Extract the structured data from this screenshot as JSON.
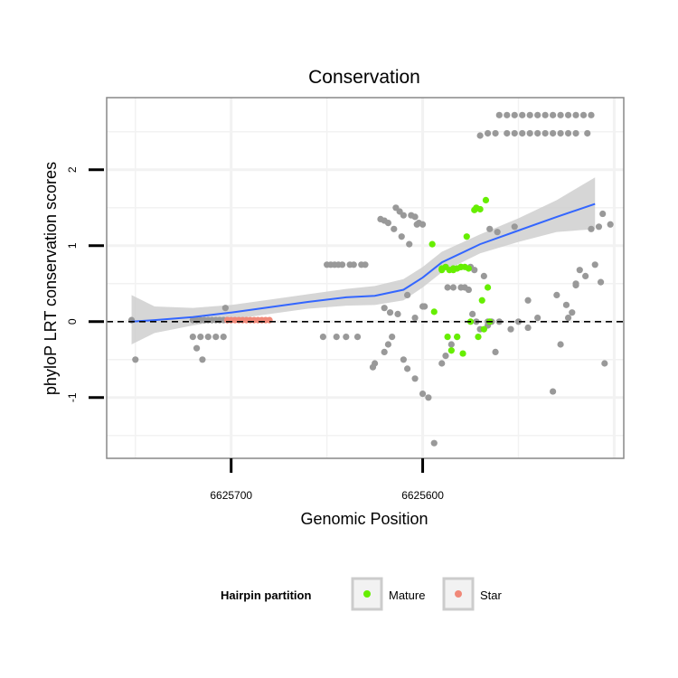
{
  "chart_data": {
    "type": "scatter",
    "title": "Conservation",
    "xlabel": "Genomic Position",
    "ylabel": "phyloP LRT conservation scores",
    "x_reversed": true,
    "xlim": [
      6625765,
      6625495
    ],
    "ylim": [
      -1.8,
      2.95
    ],
    "x_ticks": [
      6625700,
      6625600
    ],
    "x_tick_labels": [
      "6625700",
      "6625600"
    ],
    "y_ticks": [
      -1,
      0,
      1,
      2
    ],
    "y_tick_labels": [
      "-1",
      "0",
      "1",
      "2"
    ],
    "reference_line": {
      "y": 0,
      "style": "dashed"
    },
    "legend": {
      "title": "Hairpin partition",
      "position": "bottom",
      "entries": [
        {
          "label": "Mature",
          "color": "#66ee00"
        },
        {
          "label": "Star",
          "color": "#f08878"
        }
      ]
    },
    "colors": {
      "other": "#999999",
      "mature": "#66ee00",
      "star": "#f08878",
      "smooth_line": "#3366ff",
      "ci_band": "#cccccc",
      "grid": "#f2f2f2",
      "panel_border": "#888888"
    },
    "smooth": {
      "x": [
        6625752,
        6625740,
        6625720,
        6625700,
        6625680,
        6625660,
        6625640,
        6625625,
        6625610,
        6625600,
        6625590,
        6625570,
        6625550,
        6625530,
        6625510
      ],
      "y": [
        0.0,
        0.02,
        0.06,
        0.12,
        0.19,
        0.26,
        0.32,
        0.34,
        0.42,
        0.58,
        0.78,
        1.02,
        1.2,
        1.38,
        1.55
      ],
      "lower": [
        -0.3,
        -0.15,
        -0.05,
        0.03,
        0.1,
        0.17,
        0.21,
        0.22,
        0.28,
        0.45,
        0.65,
        0.9,
        1.05,
        1.18,
        1.22
      ],
      "upper": [
        0.35,
        0.2,
        0.18,
        0.22,
        0.29,
        0.36,
        0.43,
        0.47,
        0.56,
        0.72,
        0.92,
        1.15,
        1.36,
        1.6,
        1.9
      ]
    },
    "series": [
      {
        "name": "other",
        "x": [
          6625752,
          6625750,
          6625720,
          6625718,
          6625716,
          6625714,
          6625712,
          6625710,
          6625708,
          6625706,
          6625704,
          6625702,
          6625720,
          6625716,
          6625712,
          6625708,
          6625704,
          6625718,
          6625715,
          6625703,
          6625650,
          6625648,
          6625646,
          6625644,
          6625642,
          6625638,
          6625636,
          6625632,
          6625630,
          6625652,
          6625645,
          6625640,
          6625634,
          6625622,
          6625620,
          6625618,
          6625625,
          6625626,
          6625614,
          6625612,
          6625610,
          6625606,
          6625604,
          6625602,
          6625615,
          6625611,
          6625607,
          6625603,
          6625600,
          6625599,
          6625620,
          6625617,
          6625613,
          6625608,
          6625604,
          6625600,
          6625620,
          6625618,
          6625616,
          6625610,
          6625608,
          6625604,
          6625600,
          6625597,
          6625594,
          6625590,
          6625588,
          6625585,
          6625582,
          6625587,
          6625584,
          6625580,
          6625578,
          6625576,
          6625574,
          6625572,
          6625570,
          6625566,
          6625562,
          6625575,
          6625573,
          6625568,
          6625560,
          6625556,
          6625552,
          6625548,
          6625544,
          6625540,
          6625536,
          6625532,
          6625528,
          6625524,
          6625520,
          6625516,
          6625512,
          6625570,
          6625566,
          6625562,
          6625556,
          6625552,
          6625548,
          6625544,
          6625540,
          6625536,
          6625532,
          6625528,
          6625524,
          6625520,
          6625514,
          6625565,
          6625561,
          6625552,
          6625545,
          6625540,
          6625520,
          6625506,
          6625510,
          6625515,
          6625520,
          6625505,
          6625508,
          6625512,
          6625524,
          6625528,
          6625532,
          6625545,
          6625550,
          6625554,
          6625560,
          6625564,
          6625566,
          6625518,
          6625522,
          6625525,
          6625530,
          6625502,
          6625507
        ],
        "y": [
          0.02,
          -0.5,
          0.02,
          0.02,
          0.02,
          0.02,
          0.02,
          0.02,
          0.02,
          0.02,
          0.02,
          0.02,
          -0.2,
          -0.2,
          -0.2,
          -0.2,
          -0.2,
          -0.35,
          -0.5,
          0.18,
          0.75,
          0.75,
          0.75,
          0.75,
          0.75,
          0.75,
          0.75,
          0.75,
          0.75,
          -0.2,
          -0.2,
          -0.2,
          -0.2,
          1.35,
          1.33,
          1.3,
          -0.55,
          -0.6,
          1.5,
          1.45,
          1.4,
          1.4,
          1.38,
          1.3,
          1.22,
          1.12,
          1.02,
          1.28,
          1.28,
          0.2,
          0.18,
          0.12,
          0.1,
          0.35,
          0.05,
          0.2,
          -0.4,
          -0.3,
          -0.2,
          -0.5,
          -0.62,
          -0.75,
          -0.95,
          -1.0,
          -1.6,
          -0.55,
          -0.45,
          -0.3,
          -0.2,
          0.45,
          0.45,
          0.45,
          0.45,
          0.42,
          0.1,
          0.0,
          -0.1,
          -0.05,
          -0.4,
          0.72,
          0.68,
          0.6,
          2.72,
          2.72,
          2.72,
          2.72,
          2.72,
          2.72,
          2.72,
          2.72,
          2.72,
          2.72,
          2.72,
          2.72,
          2.72,
          2.45,
          2.48,
          2.48,
          2.48,
          2.48,
          2.48,
          2.48,
          2.48,
          2.48,
          2.48,
          2.48,
          2.48,
          2.48,
          2.48,
          1.22,
          1.18,
          1.25,
          0.28,
          0.05,
          0.5,
          1.42,
          0.75,
          0.6,
          0.48,
          -0.55,
          1.25,
          1.22,
          0.05,
          -0.3,
          -0.92,
          -0.08,
          0.0,
          -0.1,
          0.0,
          0.0,
          0.0,
          0.68,
          0.12,
          0.22,
          0.35,
          1.28,
          0.52
        ],
        "color": "#999999"
      },
      {
        "name": "Mature",
        "x": [
          6625595,
          6625594,
          6625590,
          6625588,
          6625586,
          6625584,
          6625582,
          6625580,
          6625578,
          6625576,
          6625587,
          6625585,
          6625582,
          6625579,
          6625572,
          6625570,
          6625567,
          6625577,
          6625575,
          6625566,
          6625569,
          6625571,
          6625568,
          6625565,
          6625573,
          6625590,
          6625584,
          6625580
        ],
        "y": [
          1.02,
          0.13,
          0.7,
          0.72,
          0.68,
          0.68,
          0.7,
          0.72,
          0.72,
          0.7,
          -0.2,
          -0.38,
          -0.2,
          -0.42,
          1.5,
          1.48,
          1.6,
          1.12,
          0.0,
          0.45,
          0.28,
          -0.2,
          -0.1,
          0.0,
          1.47,
          0.68,
          0.7,
          0.72
        ],
        "color": "#66ee00"
      },
      {
        "name": "Star",
        "x": [
          6625702,
          6625700,
          6625698,
          6625696,
          6625694,
          6625692,
          6625690,
          6625688,
          6625686,
          6625684,
          6625682,
          6625680
        ],
        "y": [
          0.02,
          0.02,
          0.02,
          0.02,
          0.02,
          0.02,
          0.02,
          0.02,
          0.02,
          0.02,
          0.02,
          0.02
        ],
        "color": "#f08878"
      }
    ]
  }
}
